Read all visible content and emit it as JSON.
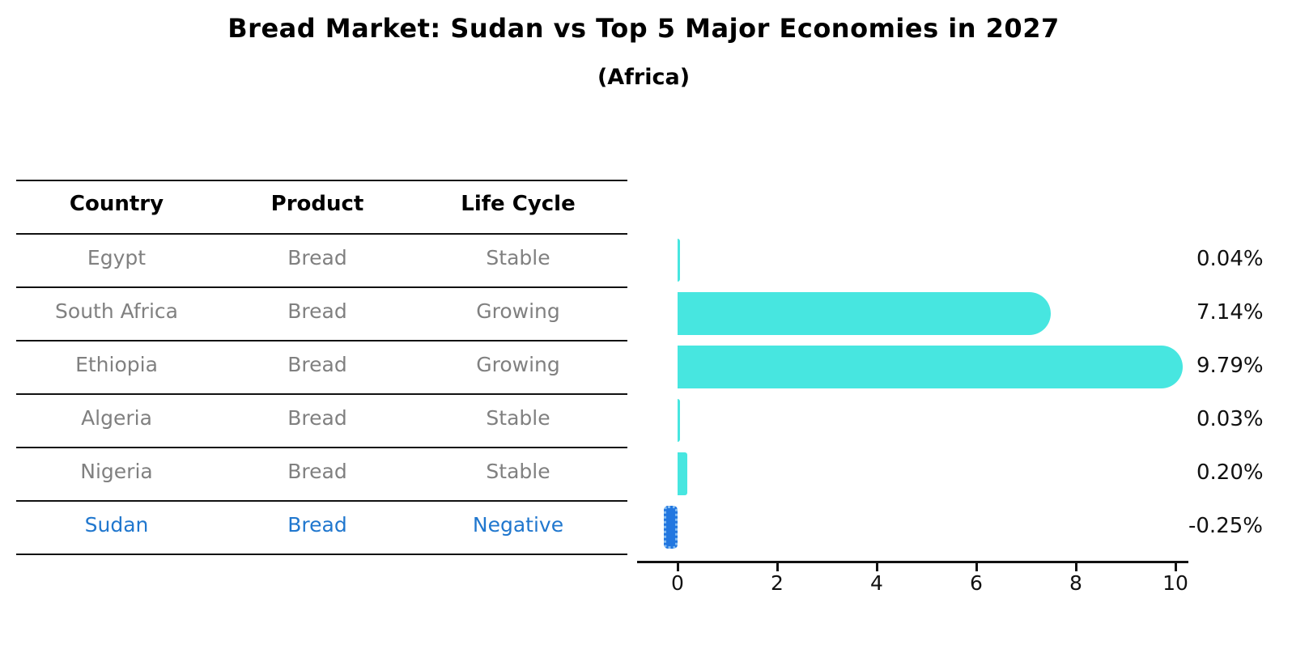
{
  "header": {
    "title": "Bread Market: Sudan vs Top 5 Major Economies in 2027",
    "subtitle": "(Africa)"
  },
  "table": {
    "columns": [
      "Country",
      "Product",
      "Life Cycle"
    ],
    "rows": [
      {
        "country": "Egypt",
        "product": "Bread",
        "life_cycle": "Stable",
        "highlight": false
      },
      {
        "country": "South Africa",
        "product": "Bread",
        "life_cycle": "Growing",
        "highlight": false
      },
      {
        "country": "Ethiopia",
        "product": "Bread",
        "life_cycle": "Growing",
        "highlight": false
      },
      {
        "country": "Algeria",
        "product": "Bread",
        "life_cycle": "Stable",
        "highlight": false
      },
      {
        "country": "Nigeria",
        "product": "Bread",
        "life_cycle": "Stable",
        "highlight": true
      },
      {
        "country": "Sudan",
        "product": "Bread",
        "life_cycle": "Negative",
        "highlight": true
      }
    ]
  },
  "chart_data": {
    "type": "bar",
    "orientation": "horizontal",
    "title": "Bread Market: Sudan vs Top 5 Major Economies in 2027",
    "subtitle": "(Africa)",
    "categories": [
      "Egypt",
      "South Africa",
      "Ethiopia",
      "Algeria",
      "Nigeria",
      "Sudan"
    ],
    "values": [
      0.04,
      7.14,
      9.79,
      0.03,
      0.2,
      -0.25
    ],
    "value_labels": [
      "0.04%",
      "7.14%",
      "9.79%",
      "0.03%",
      "0.20%",
      "-0.25%"
    ],
    "x_ticks": [
      0,
      2,
      4,
      6,
      8,
      10
    ],
    "x_tick_labels": [
      "0",
      "2",
      "4",
      "6",
      "8",
      "10"
    ],
    "xlim": [
      -0.8,
      10.25
    ],
    "grid": false,
    "legend": null,
    "bar_color": "#47e6e0",
    "negative_bar_color": "#2277e0",
    "negative_bar_edge_color": "#85bdf2",
    "highlight_text_color": "#2077ce",
    "body_text_color": "#808080"
  }
}
